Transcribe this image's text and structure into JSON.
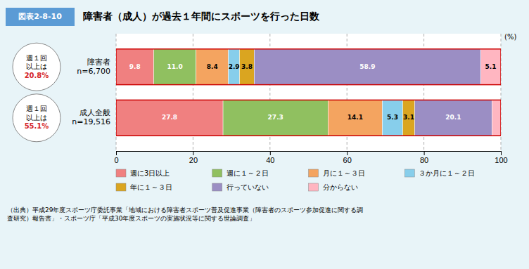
{
  "chart_data": {
    "type": "bar",
    "orientation": "horizontal",
    "stacked": true,
    "title": "障害者（成人）が過去１年間にスポーツを行った日数",
    "subtitle": "図表2-8-10",
    "xlabel": "(%)",
    "categories": [
      "障害者\nn=6,700",
      "成人全般\nn=19,516"
    ],
    "series": [
      {
        "name": "週に3日以上",
        "color": "#F08080",
        "values": [
          9.8,
          27.8
        ],
        "value_labels": [
          "9.8",
          "27.8"
        ]
      },
      {
        "name": "週に１～２日",
        "color": "#90C060",
        "values": [
          11.0,
          27.3
        ],
        "value_labels": [
          "11.0",
          "27.3"
        ]
      },
      {
        "name": "月に１～３日",
        "color": "#F4A460",
        "values": [
          8.4,
          14.1
        ],
        "value_labels": [
          "8.4",
          "14.1"
        ]
      },
      {
        "name": "３か月に１～２日",
        "color": "#87CEEB",
        "values": [
          2.9,
          5.3
        ],
        "value_labels": [
          "2.9",
          "5.3"
        ]
      },
      {
        "name": "年に１～３日",
        "color": "#DAA520",
        "values": [
          3.8,
          3.1
        ],
        "value_labels": [
          "3.8",
          "3.1"
        ]
      },
      {
        "name": "行っていない",
        "color": "#9B8EC4",
        "values": [
          58.9,
          20.1
        ],
        "value_labels": [
          "58.9",
          "20.1"
        ]
      },
      {
        "name": "分からない",
        "color": "#FFB6C1",
        "values": [
          5.1,
          2.3
        ],
        "value_labels": [
          "5.1",
          null
        ]
      }
    ],
    "xlim": [
      0,
      100
    ],
    "xticks": [
      0,
      20,
      40,
      60,
      80,
      100
    ],
    "grid": true,
    "data_labels": true,
    "annotations": [
      "週１回\n以上は\n20.8%",
      "週１回\n以上は\n55.1%",
      "（出典）平成29年度スポーツ庁委託事業「地域における障害者スポーツ普及促進事業（障害者のスポーツ参加促進に関する調\n査研究）報告書」・スポーツ庁「平成30年度スポーツの実施状況等に関する世論調査」"
    ]
  }
}
